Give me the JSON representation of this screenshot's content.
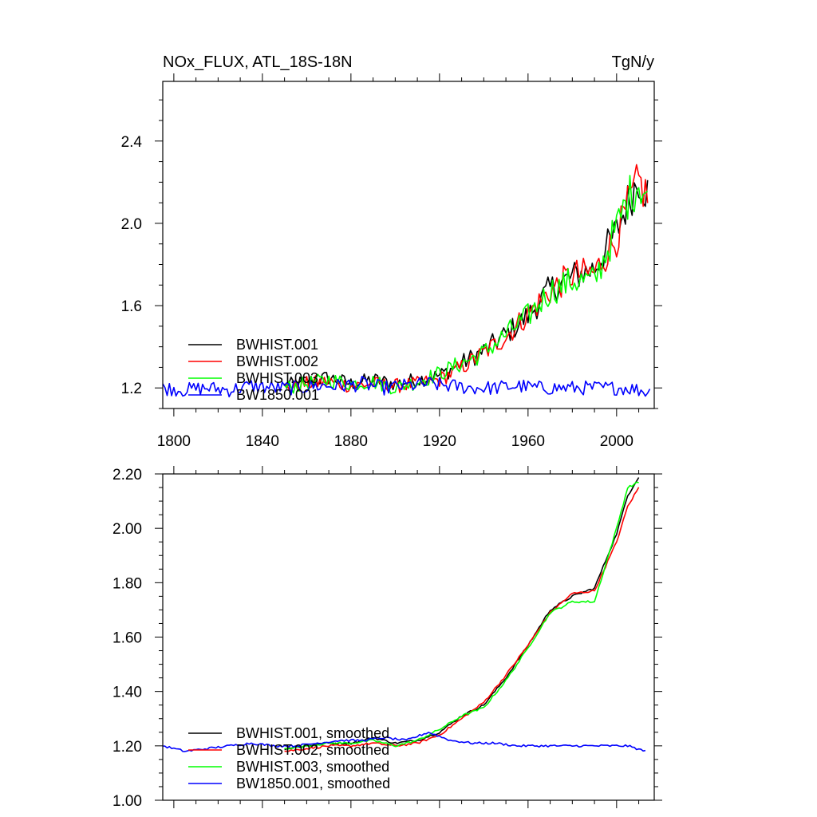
{
  "chart_data": [
    {
      "type": "line",
      "title": "NOx_FLUX, ATL_18S-18N",
      "units": "TgN/y",
      "xlabel": "",
      "ylabel": "",
      "xlim": [
        1795,
        2017
      ],
      "ylim": [
        1.1,
        2.69
      ],
      "xticks": [
        1800,
        1840,
        1880,
        1920,
        1960,
        2000
      ],
      "yticks": [
        1.2,
        1.6,
        2.0,
        2.4
      ],
      "ytick_labels": [
        "1.2",
        "1.6",
        "2.0",
        "2.4"
      ],
      "legend_position": "lower-left",
      "series": [
        {
          "name": "BWHIST.001",
          "color": "#000000",
          "x": [
            1850,
            1860,
            1870,
            1880,
            1890,
            1900,
            1910,
            1920,
            1930,
            1940,
            1950,
            1960,
            1970,
            1980,
            1990,
            2000,
            2005,
            2010,
            2014
          ],
          "values": [
            1.21,
            1.23,
            1.25,
            1.22,
            1.24,
            1.22,
            1.24,
            1.26,
            1.32,
            1.38,
            1.46,
            1.55,
            1.68,
            1.74,
            1.78,
            1.96,
            2.1,
            2.22,
            2.15
          ]
        },
        {
          "name": "BWHIST.002",
          "color": "#ff0000",
          "x": [
            1850,
            1860,
            1870,
            1880,
            1890,
            1900,
            1910,
            1920,
            1930,
            1940,
            1950,
            1960,
            1970,
            1980,
            1990,
            2000,
            2005,
            2010,
            2014
          ],
          "values": [
            1.2,
            1.22,
            1.23,
            1.21,
            1.22,
            1.21,
            1.22,
            1.24,
            1.3,
            1.37,
            1.45,
            1.56,
            1.67,
            1.75,
            1.76,
            1.93,
            2.08,
            2.2,
            2.13
          ]
        },
        {
          "name": "BWHIST.003",
          "color": "#00ff00",
          "x": [
            1850,
            1860,
            1870,
            1880,
            1890,
            1900,
            1910,
            1920,
            1930,
            1940,
            1950,
            1960,
            1970,
            1980,
            1990,
            2000,
            2005,
            2010,
            2014
          ],
          "values": [
            1.2,
            1.22,
            1.24,
            1.22,
            1.23,
            1.2,
            1.23,
            1.27,
            1.32,
            1.37,
            1.46,
            1.55,
            1.67,
            1.72,
            1.72,
            1.98,
            2.12,
            2.2,
            2.14
          ]
        },
        {
          "name": "BW1850.001",
          "color": "#0000ff",
          "x": [
            1795,
            1805,
            1815,
            1825,
            1835,
            1845,
            1855,
            1865,
            1875,
            1885,
            1895,
            1905,
            1915,
            1925,
            1935,
            1945,
            1955,
            1965,
            1975,
            1985,
            1995,
            2005,
            2015
          ],
          "values": [
            1.2,
            1.19,
            1.2,
            1.19,
            1.21,
            1.2,
            1.2,
            1.21,
            1.21,
            1.22,
            1.2,
            1.21,
            1.22,
            1.21,
            1.2,
            1.2,
            1.21,
            1.2,
            1.2,
            1.2,
            1.2,
            1.2,
            1.18
          ]
        }
      ]
    },
    {
      "type": "line",
      "title": "",
      "xlabel": "",
      "ylabel": "",
      "xlim": [
        1795,
        2017
      ],
      "ylim": [
        1.0,
        2.2
      ],
      "xticks": [
        1800,
        1840,
        1880,
        1920,
        1960,
        2000
      ],
      "yticks": [
        1.0,
        1.2,
        1.4,
        1.6,
        1.8,
        2.0,
        2.2
      ],
      "ytick_labels": [
        "1.00",
        "1.20",
        "1.40",
        "1.60",
        "1.80",
        "2.00",
        "2.20"
      ],
      "legend_position": "lower-left",
      "series": [
        {
          "name": "BWHIST.001, smoothed",
          "color": "#000000",
          "x": [
            1850,
            1860,
            1870,
            1880,
            1890,
            1900,
            1910,
            1920,
            1930,
            1940,
            1950,
            1960,
            1970,
            1980,
            1990,
            2000,
            2005,
            2010
          ],
          "values": [
            1.19,
            1.2,
            1.21,
            1.21,
            1.23,
            1.21,
            1.22,
            1.25,
            1.31,
            1.35,
            1.45,
            1.57,
            1.7,
            1.75,
            1.78,
            1.98,
            2.12,
            2.19
          ]
        },
        {
          "name": "BWHIST.002, smoothed",
          "color": "#ff0000",
          "x": [
            1850,
            1860,
            1870,
            1880,
            1890,
            1900,
            1910,
            1920,
            1930,
            1940,
            1950,
            1960,
            1970,
            1980,
            1990,
            2000,
            2005,
            2010
          ],
          "values": [
            1.18,
            1.19,
            1.2,
            1.2,
            1.21,
            1.2,
            1.21,
            1.24,
            1.3,
            1.36,
            1.46,
            1.57,
            1.69,
            1.76,
            1.77,
            1.95,
            2.08,
            2.15
          ]
        },
        {
          "name": "BWHIST.003, smoothed",
          "color": "#00ff00",
          "x": [
            1850,
            1860,
            1870,
            1880,
            1890,
            1900,
            1910,
            1920,
            1930,
            1940,
            1950,
            1960,
            1970,
            1980,
            1990,
            2000,
            2005,
            2010
          ],
          "values": [
            1.19,
            1.2,
            1.21,
            1.21,
            1.22,
            1.2,
            1.22,
            1.26,
            1.31,
            1.34,
            1.44,
            1.56,
            1.69,
            1.73,
            1.73,
            2.0,
            2.15,
            2.17
          ]
        },
        {
          "name": "BW1850.001, smoothed",
          "color": "#0000ff",
          "x": [
            1795,
            1805,
            1815,
            1825,
            1835,
            1845,
            1855,
            1865,
            1875,
            1885,
            1895,
            1905,
            1915,
            1925,
            1935,
            1945,
            1955,
            1965,
            1975,
            1985,
            1995,
            2005,
            2013
          ],
          "values": [
            1.2,
            1.18,
            1.19,
            1.2,
            1.21,
            1.2,
            1.2,
            1.21,
            1.22,
            1.22,
            1.23,
            1.22,
            1.25,
            1.22,
            1.21,
            1.21,
            1.2,
            1.2,
            1.2,
            1.2,
            1.2,
            1.2,
            1.18
          ]
        }
      ]
    }
  ]
}
